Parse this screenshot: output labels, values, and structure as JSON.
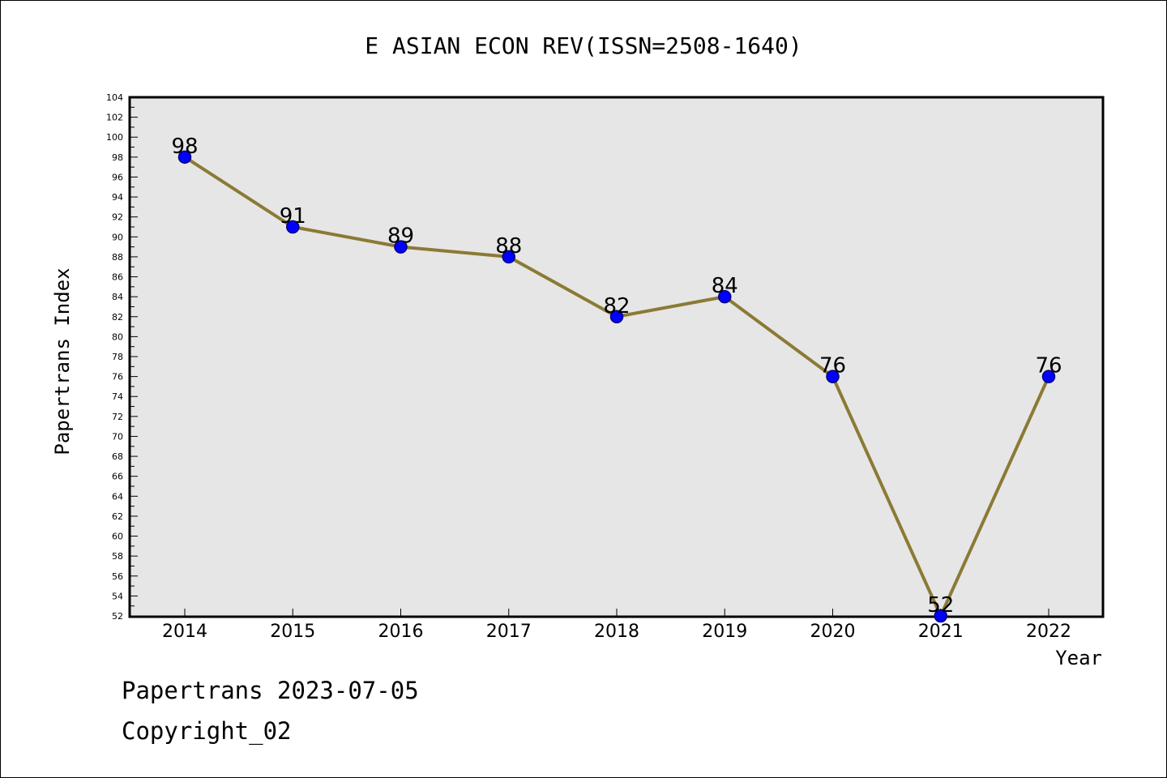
{
  "chart_data": {
    "type": "line",
    "title": "E ASIAN ECON REV(ISSN=2508-1640)",
    "xlabel": "Year",
    "ylabel": "Papertrans Index",
    "categories": [
      "2014",
      "2015",
      "2016",
      "2017",
      "2018",
      "2019",
      "2020",
      "2021",
      "2022"
    ],
    "series": [
      {
        "name": "Papertrans Index",
        "values": [
          98,
          91,
          89,
          88,
          82,
          84,
          76,
          52,
          76
        ],
        "data_labels": [
          "98",
          "91",
          "89",
          "88",
          "82",
          "84",
          "76",
          "52",
          "76"
        ]
      }
    ],
    "ylim": [
      52,
      104
    ],
    "y_ticks": [
      "52",
      "54",
      "56",
      "58",
      "60",
      "62",
      "64",
      "66",
      "68",
      "70",
      "72",
      "74",
      "76",
      "78",
      "80",
      "82",
      "84",
      "86",
      "88",
      "90",
      "92",
      "94",
      "96",
      "98",
      "100",
      "102",
      "104"
    ],
    "grid": false,
    "colors": {
      "plot_background": "#e6e6e6",
      "line": "#8b7a35",
      "marker_fill": "#0000ff",
      "marker_stroke": "#000080",
      "axis": "#000000"
    }
  },
  "footer": {
    "date_line": "Papertrans 2023-07-05",
    "copyright": "Copyright_02"
  }
}
